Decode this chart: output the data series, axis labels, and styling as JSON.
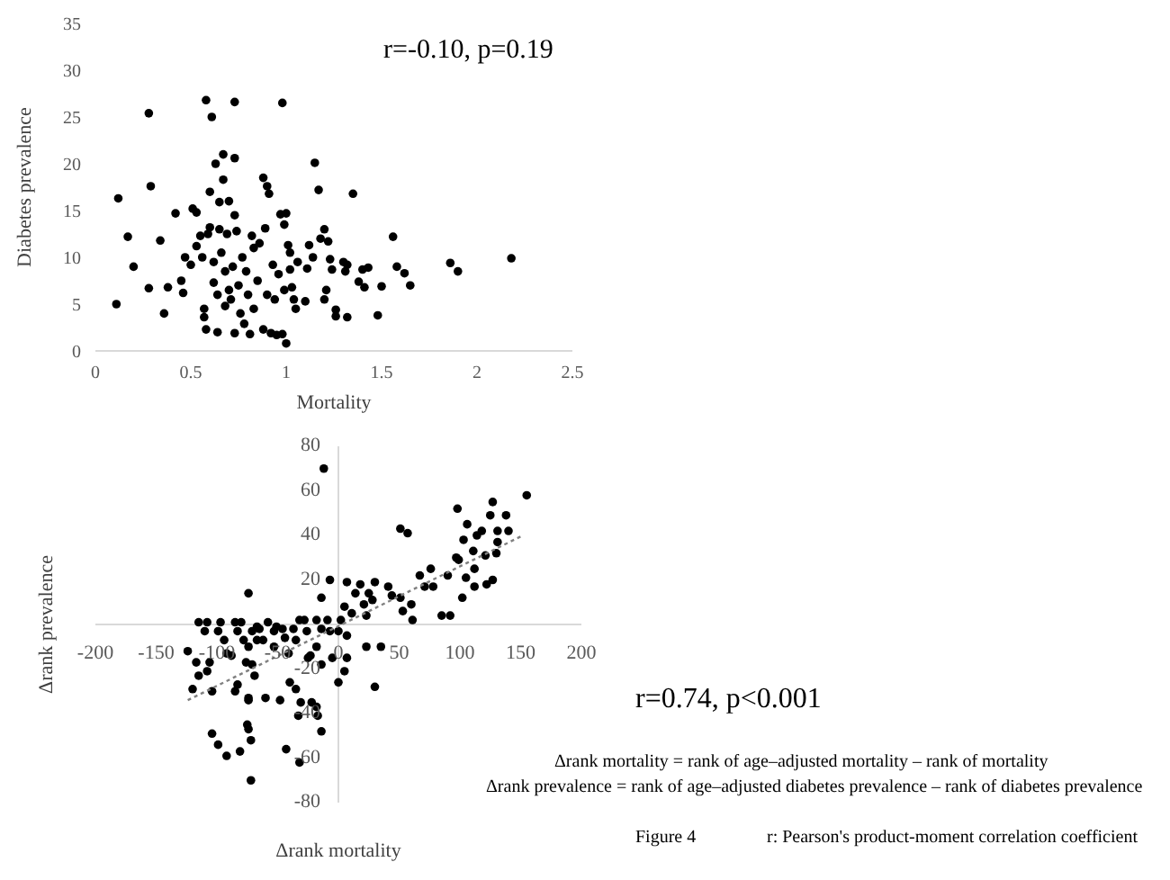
{
  "chart_data": [
    {
      "type": "scatter",
      "xlabel": "Mortality",
      "ylabel": "Diabetes prevalence",
      "xlim": [
        0,
        2.5
      ],
      "xticks": [
        0,
        0.5,
        1,
        1.5,
        2,
        2.5
      ],
      "ylim": [
        0,
        35
      ],
      "yticks": [
        0,
        5,
        10,
        15,
        20,
        25,
        30,
        35
      ],
      "marker": "circle",
      "annotations": [
        "r=-0.10, p=0.19"
      ],
      "series": [
        {
          "color": "#000000",
          "x": [
            0.11,
            0.12,
            0.17,
            0.2,
            0.28,
            0.28,
            0.29,
            0.34,
            0.36,
            0.38,
            0.42,
            0.45,
            0.46,
            0.47,
            0.5,
            0.51,
            0.53,
            0.53,
            0.55,
            0.56,
            0.57,
            0.57,
            0.58,
            0.58,
            0.59,
            0.6,
            0.6,
            0.61,
            0.62,
            0.62,
            0.63,
            0.64,
            0.64,
            0.65,
            0.65,
            0.66,
            0.67,
            0.67,
            0.68,
            0.68,
            0.69,
            0.7,
            0.7,
            0.71,
            0.72,
            0.73,
            0.73,
            0.73,
            0.73,
            0.74,
            0.75,
            0.76,
            0.77,
            0.78,
            0.79,
            0.8,
            0.81,
            0.82,
            0.83,
            0.83,
            0.85,
            0.86,
            0.88,
            0.88,
            0.89,
            0.9,
            0.9,
            0.91,
            0.92,
            0.93,
            0.94,
            0.95,
            0.96,
            0.97,
            0.98,
            0.98,
            0.99,
            0.99,
            1,
            1,
            1.01,
            1.02,
            1.02,
            1.03,
            1.04,
            1.05,
            1.06,
            1.1,
            1.11,
            1.12,
            1.14,
            1.15,
            1.17,
            1.18,
            1.2,
            1.2,
            1.21,
            1.22,
            1.23,
            1.24,
            1.26,
            1.26,
            1.3,
            1.31,
            1.32,
            1.32,
            1.35,
            1.38,
            1.4,
            1.41,
            1.43,
            1.48,
            1.5,
            1.56,
            1.58,
            1.62,
            1.65,
            1.86,
            1.9,
            2.18
          ],
          "values": [
            5,
            16.3,
            12.2,
            9,
            25.4,
            6.7,
            17.6,
            11.8,
            4,
            6.8,
            14.7,
            7.5,
            6.2,
            10,
            9.2,
            15.2,
            14.8,
            11.2,
            12.3,
            10,
            3.6,
            4.5,
            26.8,
            2.3,
            12.5,
            17,
            13.2,
            25,
            9.5,
            7.3,
            20,
            6,
            2,
            13,
            15.9,
            10.5,
            18.3,
            21,
            8.5,
            4.8,
            12.5,
            16,
            6.5,
            5.5,
            9,
            14.5,
            26.6,
            20.6,
            1.9,
            12.8,
            7,
            4,
            10,
            2.9,
            8.5,
            6,
            1.8,
            12.3,
            11,
            4.5,
            7.5,
            11.5,
            18.5,
            2.3,
            13.1,
            17.6,
            6,
            16.8,
            1.9,
            9.2,
            5.5,
            1.7,
            8.2,
            14.6,
            1.8,
            26.5,
            13.5,
            6.5,
            0.8,
            14.7,
            11.3,
            10.5,
            8.7,
            6.8,
            5.5,
            4.5,
            9.5,
            5.3,
            8.8,
            11.3,
            10,
            20.1,
            17.2,
            12,
            13,
            5.5,
            6.5,
            11.7,
            9.8,
            8.7,
            4.4,
            3.7,
            9.5,
            8.5,
            3.6,
            9.2,
            16.8,
            7.4,
            8.7,
            6.8,
            8.9,
            3.8,
            6.9,
            12.2,
            9,
            8.3,
            7,
            9.4,
            8.5,
            9.9
          ]
        }
      ]
    },
    {
      "type": "scatter",
      "xlabel": "Δrank mortality",
      "ylabel": "Δrank prevalence",
      "xlim": [
        -200,
        200
      ],
      "xticks": [
        -200,
        -150,
        -100,
        -50,
        0,
        50,
        100,
        150,
        200
      ],
      "ylim": [
        -80,
        80
      ],
      "yticks": [
        -80,
        -60,
        -40,
        -20,
        {
          "value": 0,
          "label": null
        },
        20,
        40,
        60,
        80
      ],
      "marker": "circle",
      "annotations": [
        "r=0.74, p<0.001",
        "Δrank mortality = rank of age–adjusted mortality – rank of mortality",
        "Δrank prevalence = rank of age–adjusted diabetes prevalence – rank of diabetes prevalence",
        "Figure 4",
        "r: Pearson's product-moment correlation coefficient"
      ],
      "series": [
        {
          "color": "#000000",
          "x": [
            -12,
            155,
            127,
            98,
            138,
            125,
            106,
            51,
            57,
            118,
            131,
            140,
            103,
            114,
            131,
            111,
            130,
            97,
            121,
            99,
            112,
            127,
            -7,
            -14,
            7,
            18,
            14,
            25,
            30,
            5,
            21,
            28,
            41,
            44,
            51,
            53,
            60,
            61,
            67,
            71,
            76,
            78,
            90,
            85,
            92,
            105,
            112,
            102,
            122,
            23,
            11,
            2,
            -9,
            -18,
            -28,
            -26,
            -14,
            -7,
            0,
            7,
            -18,
            -23,
            -35,
            -44,
            -53,
            -58,
            -65,
            -71,
            -74,
            -80,
            -83,
            -78,
            -74,
            -76,
            -71,
            -69,
            -88,
            -92,
            -94,
            -99,
            -85,
            -97,
            -108,
            -110,
            -124,
            -106,
            -115,
            -104,
            -83,
            -85,
            -74,
            -74,
            -60,
            -48,
            -40,
            -35,
            -31,
            -33,
            -22,
            -18,
            -17,
            -14,
            -25,
            -14,
            0,
            5,
            7,
            30,
            23,
            35,
            -75,
            -74,
            -72,
            -72,
            -81,
            -92,
            -99,
            -104,
            -43,
            -32,
            -115,
            -117,
            -108,
            -120,
            -5,
            -41,
            -53,
            -62,
            -67,
            -46,
            -51,
            -67,
            -32,
            -37
          ],
          "values": [
            70,
            58,
            55,
            52,
            49,
            49,
            45,
            43,
            41,
            42,
            42,
            42,
            38,
            40,
            37,
            33,
            32,
            30,
            31,
            29,
            25,
            20,
            20,
            12,
            19,
            18,
            14,
            14,
            19,
            8,
            9,
            11,
            17,
            13,
            12,
            6,
            9,
            2,
            22,
            17,
            25,
            17,
            22,
            4,
            4,
            21,
            17,
            12,
            18,
            4,
            5,
            2,
            2,
            2,
            2,
            -3,
            -2,
            -3,
            -3,
            -5,
            -10,
            -14,
            -7,
            -6,
            -3,
            1,
            -2,
            -3,
            14,
            1,
            -3,
            -7,
            -10,
            -17,
            -18,
            -23,
            -14,
            -13,
            -7,
            -3,
            1,
            1,
            1,
            -3,
            -12,
            -17,
            -23,
            -30,
            -27,
            -30,
            -33,
            -34,
            -33,
            -34,
            -26,
            -29,
            -35,
            -41,
            -35,
            -37,
            -41,
            -48,
            -15,
            -18,
            -26,
            -21,
            -15,
            -28,
            -10,
            -10,
            -45,
            -47,
            -52,
            -70,
            -57,
            -59,
            -54,
            -49,
            -56,
            -62,
            1,
            -17,
            -21,
            -29,
            -15,
            -13,
            -10,
            -7,
            -7,
            -2,
            -1,
            -1,
            2,
            -2
          ]
        },
        {
          "type": "line",
          "line_style": "dotted",
          "marker": "none",
          "color": "#808080",
          "x": [
            -124,
            152
          ],
          "values": [
            -34,
            40
          ]
        }
      ]
    }
  ]
}
